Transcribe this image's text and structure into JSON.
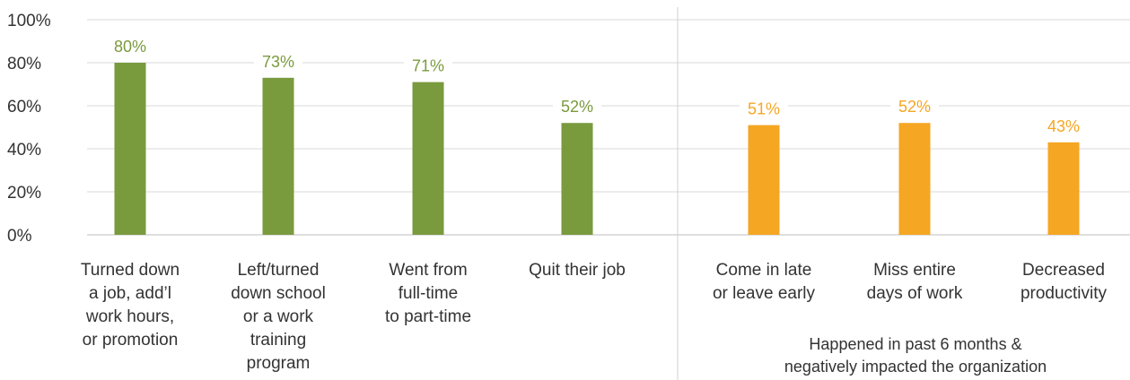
{
  "chart_data": {
    "type": "bar",
    "title": "",
    "xlabel": "",
    "ylabel": "",
    "ylim": [
      0,
      100
    ],
    "yticks": [
      "0%",
      "20%",
      "40%",
      "60%",
      "80%",
      "100%"
    ],
    "grid": true,
    "categories": [
      [
        "Turned down",
        "a job, add’l",
        "work hours,",
        "or promotion"
      ],
      [
        "Left/turned",
        "down school",
        "or a work",
        "training",
        "program"
      ],
      [
        "Went from",
        "full-time",
        "to part-time"
      ],
      [
        "Quit their job"
      ],
      [
        "Come in late",
        "or leave early"
      ],
      [
        "Miss entire",
        "days of work"
      ],
      [
        "Decreased",
        "productivity"
      ]
    ],
    "values": [
      80,
      73,
      71,
      52,
      51,
      52,
      43
    ],
    "value_labels": [
      "80%",
      "73%",
      "71%",
      "52%",
      "51%",
      "52%",
      "43%"
    ],
    "groups": [
      {
        "indices": [
          0,
          1,
          2,
          3
        ],
        "color": "#7a9a3e",
        "note": ""
      },
      {
        "indices": [
          4,
          5,
          6
        ],
        "color": "#f5a623",
        "note": [
          "Happened in past 6 months &",
          "negatively impacted the organization"
        ]
      }
    ]
  }
}
